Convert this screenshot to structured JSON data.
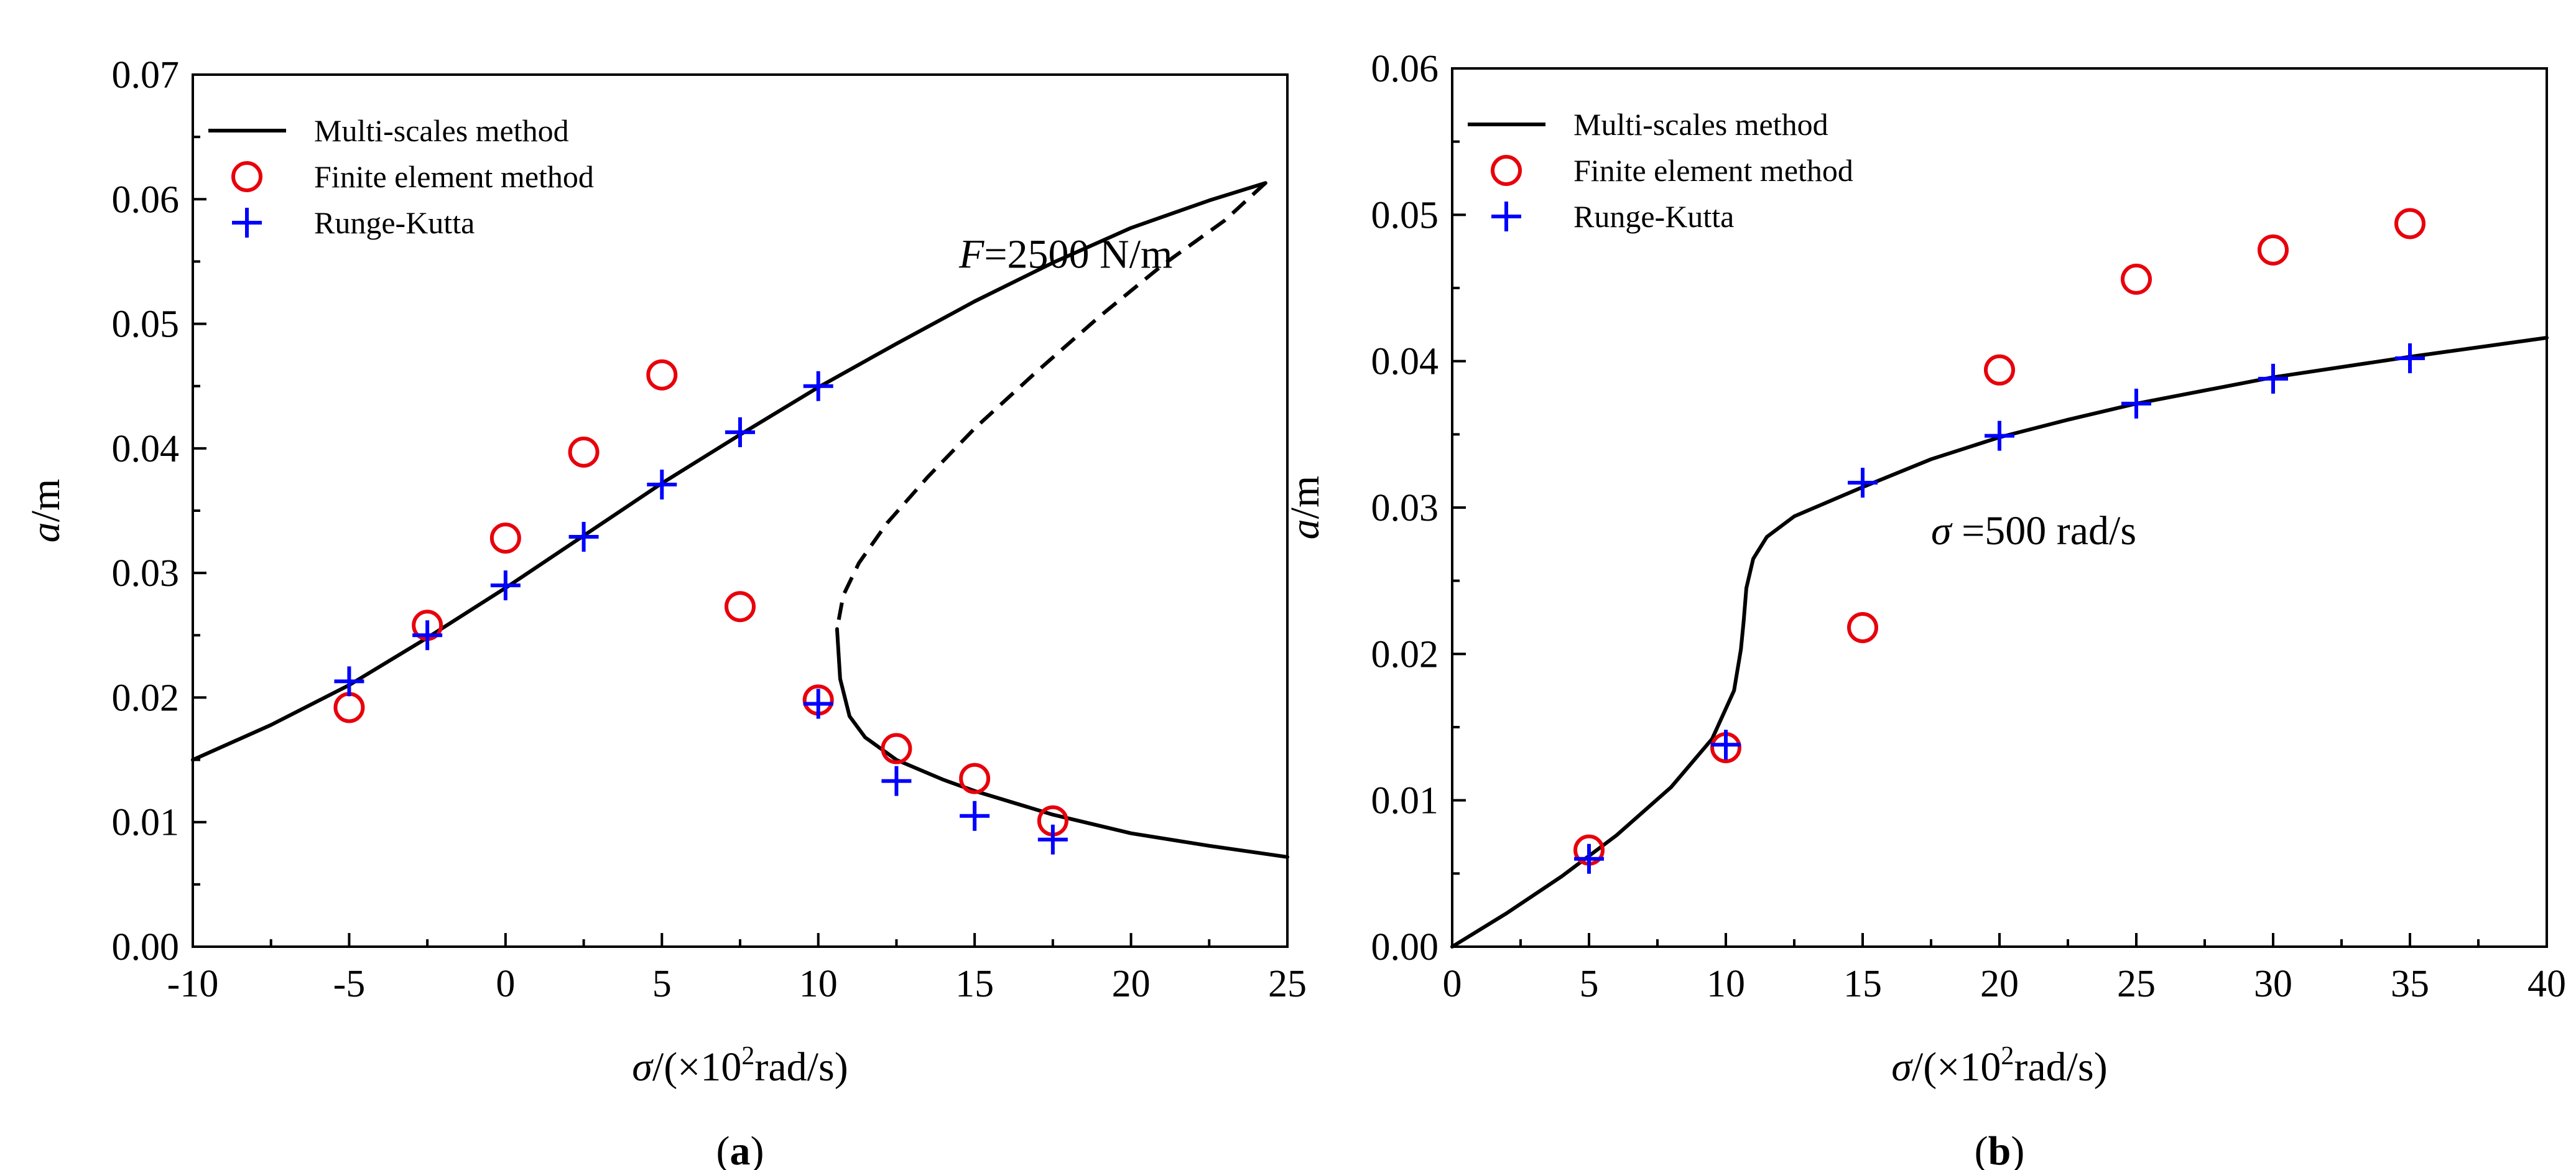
{
  "chart_data": [
    {
      "type": "line",
      "panel": "a",
      "caption_open": "(",
      "caption_letter": "a",
      "caption_close": ")",
      "xlabel_symbol": "σ",
      "xlabel_pre": "/(×10",
      "xlabel_sup": "2",
      "xlabel_post": "rad/s)",
      "ylabel_symbol": "a",
      "ylabel_post": "/m",
      "xlim": [
        -10,
        25
      ],
      "ylim": [
        0,
        0.07
      ],
      "xticks": [
        -10,
        -5,
        0,
        5,
        10,
        15,
        20,
        25
      ],
      "xtick_labels": [
        "-10",
        "-5",
        "0",
        "5",
        "10",
        "15",
        "20",
        "25"
      ],
      "yticks": [
        0,
        0.01,
        0.02,
        0.03,
        0.04,
        0.05,
        0.06,
        0.07
      ],
      "ytick_labels": [
        "0.00",
        "0.01",
        "0.02",
        "0.03",
        "0.04",
        "0.05",
        "0.06",
        "0.07"
      ],
      "annotation": {
        "symbol": "F",
        "text": "=2500 N/m",
        "x": 14.5,
        "y": 0.0545
      },
      "legend_position": "top-left",
      "legend": [
        {
          "label": "Multi-scales method",
          "marker": "line"
        },
        {
          "label": "Finite element method",
          "marker": "circle"
        },
        {
          "label": "Runge-Kutta",
          "marker": "plus"
        }
      ],
      "series": [
        {
          "name": "Multi-scales method (stable upper branch)",
          "style": "solid",
          "x": [
            -10,
            -7.5,
            -5,
            -2.5,
            0,
            2.5,
            5,
            7.5,
            10,
            12.5,
            15,
            17.5,
            20,
            22.5,
            24.3
          ],
          "y": [
            0.015,
            0.0178,
            0.021,
            0.0248,
            0.0288,
            0.033,
            0.0372,
            0.0411,
            0.0449,
            0.0484,
            0.0518,
            0.0549,
            0.0577,
            0.0599,
            0.0613
          ]
        },
        {
          "name": "Multi-scales method (unstable branch)",
          "style": "dashed",
          "x": [
            24.3,
            23,
            21,
            19,
            17,
            15,
            13.5,
            12.2,
            11.3,
            10.8,
            10.6
          ],
          "y": [
            0.0613,
            0.0583,
            0.0547,
            0.0506,
            0.0462,
            0.0416,
            0.0377,
            0.034,
            0.0308,
            0.0282,
            0.0255
          ]
        },
        {
          "name": "Multi-scales method (stable lower branch)",
          "style": "solid",
          "x": [
            10.6,
            10.7,
            11,
            11.5,
            12.5,
            14,
            15,
            17.5,
            20,
            22.5,
            25
          ],
          "y": [
            0.0255,
            0.0215,
            0.0185,
            0.0168,
            0.015,
            0.0134,
            0.0125,
            0.0106,
            0.0091,
            0.0081,
            0.0072
          ]
        },
        {
          "name": "Finite element method",
          "marker": "circle",
          "x": [
            -5,
            -2.5,
            0,
            2.5,
            5,
            7.5,
            10,
            12.5,
            15,
            17.5
          ],
          "y": [
            0.0192,
            0.0258,
            0.0328,
            0.0397,
            0.0459,
            0.0273,
            0.0198,
            0.0159,
            0.0135,
            0.0101
          ]
        },
        {
          "name": "Runge-Kutta",
          "marker": "plus",
          "x": [
            -5,
            -2.5,
            0,
            2.5,
            5,
            7.5,
            10,
            10,
            12.5,
            15,
            17.5
          ],
          "y": [
            0.0213,
            0.025,
            0.029,
            0.0329,
            0.0371,
            0.0413,
            0.045,
            0.0195,
            0.0133,
            0.0105,
            0.0086
          ]
        }
      ]
    },
    {
      "type": "line",
      "panel": "b",
      "caption_open": "(",
      "caption_letter": "b",
      "caption_close": ")",
      "xlabel_symbol": "σ",
      "xlabel_pre": "/(×10",
      "xlabel_sup": "2",
      "xlabel_post": "rad/s)",
      "ylabel_symbol": "a",
      "ylabel_post": "/m",
      "xlim": [
        0,
        40
      ],
      "ylim": [
        0,
        0.06
      ],
      "xticks": [
        0,
        5,
        10,
        15,
        20,
        25,
        30,
        35,
        40
      ],
      "xtick_labels": [
        "0",
        "5",
        "10",
        "15",
        "20",
        "25",
        "30",
        "35",
        "40"
      ],
      "yticks": [
        0,
        0.01,
        0.02,
        0.03,
        0.04,
        0.05,
        0.06
      ],
      "ytick_labels": [
        "0.00",
        "0.01",
        "0.02",
        "0.03",
        "0.04",
        "0.05",
        "0.06"
      ],
      "annotation": {
        "symbol": "σ",
        "text": " =500 rad/s",
        "x": 17.5,
        "y": 0.0275
      },
      "legend_position": "top-left",
      "legend": [
        {
          "label": "Multi-scales method",
          "marker": "line"
        },
        {
          "label": "Finite element method",
          "marker": "circle"
        },
        {
          "label": "Runge-Kutta",
          "marker": "plus"
        }
      ],
      "series": [
        {
          "name": "Multi-scales method",
          "style": "solid",
          "x": [
            0,
            2,
            4,
            6,
            8,
            9.5,
            10.3,
            10.55,
            10.65,
            10.75,
            11,
            11.5,
            12.5,
            14,
            15,
            17.5,
            20,
            22.5,
            25,
            30,
            35,
            40
          ],
          "y": [
            0,
            0.0023,
            0.0048,
            0.0076,
            0.0109,
            0.0142,
            0.0175,
            0.0203,
            0.0222,
            0.0245,
            0.0265,
            0.028,
            0.0294,
            0.0306,
            0.0314,
            0.0333,
            0.0348,
            0.036,
            0.0371,
            0.0389,
            0.0403,
            0.0416
          ]
        },
        {
          "name": "Finite element method",
          "marker": "circle",
          "x": [
            5,
            10,
            15,
            20,
            25,
            30,
            35
          ],
          "y": [
            0.0066,
            0.0136,
            0.0218,
            0.0394,
            0.0456,
            0.0476,
            0.0494
          ]
        },
        {
          "name": "Runge-Kutta",
          "marker": "plus",
          "x": [
            5,
            10,
            15,
            20,
            25,
            30,
            35
          ],
          "y": [
            0.006,
            0.0138,
            0.0317,
            0.0349,
            0.0371,
            0.0388,
            0.0402
          ]
        }
      ]
    }
  ]
}
